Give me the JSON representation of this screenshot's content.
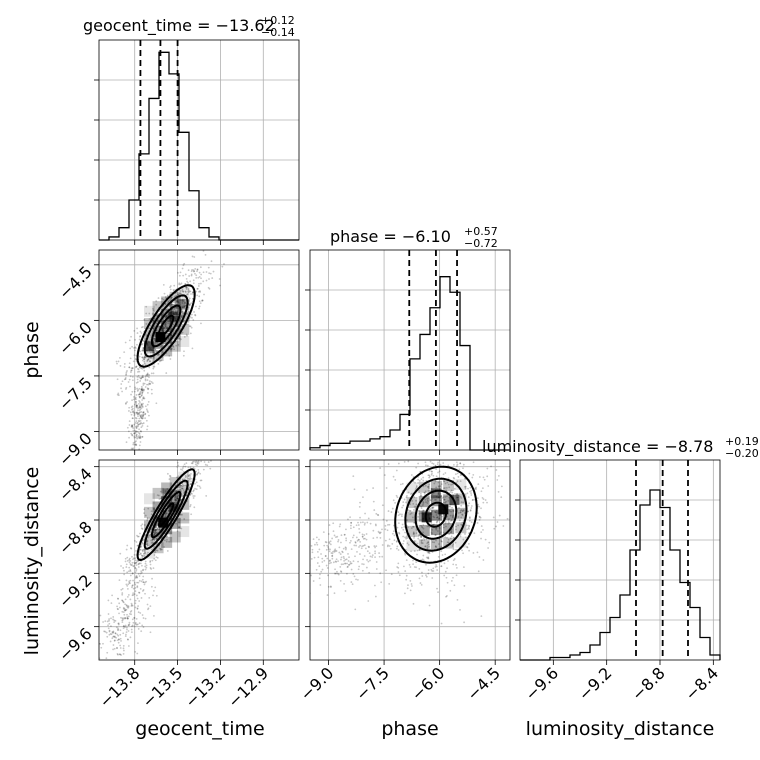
{
  "chart_data": {
    "type": "corner",
    "parameters": [
      {
        "name": "geocent_time",
        "axis_label": "geocent_time",
        "title_main": "geocent_time = −13.62",
        "title_plus": "+0.12",
        "title_minus": "−0.14",
        "range": [
          -14.05,
          -12.65
        ],
        "ticks": [
          -13.8,
          -13.5,
          -13.2,
          -12.9
        ],
        "tick_labels": [
          "−13.8",
          "−13.5",
          "−13.2",
          "−12.9"
        ],
        "quantiles": [
          -13.76,
          -13.62,
          -13.5
        ],
        "hist_bins": [
          -14.05,
          -13.98,
          -13.91,
          -13.84,
          -13.77,
          -13.7,
          -13.63,
          -13.56,
          -13.49,
          -13.42,
          -13.35,
          -13.28,
          -13.21,
          -13.14,
          -13.07,
          -13.0,
          -12.93,
          -12.86,
          -12.79,
          -12.72,
          -12.65
        ],
        "hist_counts": [
          0,
          1,
          4,
          13,
          28,
          46,
          61,
          54,
          35,
          16,
          4,
          1,
          0,
          0,
          0,
          0,
          0,
          0,
          0,
          0
        ],
        "hist_max": 65
      },
      {
        "name": "phase",
        "axis_label": "phase",
        "title_main": "phase = −6.10",
        "title_plus": "+0.57",
        "title_minus": "−0.72",
        "range": [
          -9.5,
          -4.1
        ],
        "ticks": [
          -9.0,
          -7.5,
          -6.0,
          -4.5
        ],
        "tick_labels": [
          "−9.0",
          "−7.5",
          "−6.0",
          "−4.5"
        ],
        "quantiles": [
          -6.82,
          -6.1,
          -5.53
        ],
        "hist_bins": [
          -9.5,
          -9.23,
          -8.96,
          -8.69,
          -8.42,
          -8.15,
          -7.88,
          -7.61,
          -7.34,
          -7.07,
          -6.8,
          -6.53,
          -6.26,
          -5.99,
          -5.72,
          -5.45,
          -5.18,
          -4.91,
          -4.64,
          -4.37,
          -4.1
        ],
        "hist_counts": [
          1,
          2,
          3,
          3,
          4,
          4,
          5,
          6,
          9,
          16,
          41,
          52,
          64,
          78,
          71,
          47,
          0,
          0,
          0,
          0
        ],
        "hist_max": 90
      },
      {
        "name": "luminosity_distance",
        "axis_label": "luminosity_distance",
        "title_main": "luminosity_distance = −8.78",
        "title_plus": "+0.19",
        "title_minus": "−0.20",
        "range": [
          -9.85,
          -8.35
        ],
        "ticks": [
          -9.6,
          -9.2,
          -8.8,
          -8.4
        ],
        "tick_labels": [
          "−9.6",
          "−9.2",
          "−8.8",
          "−8.4"
        ],
        "quantiles": [
          -8.98,
          -8.78,
          -8.59
        ],
        "hist_bins": [
          -9.85,
          -9.775,
          -9.7,
          -9.625,
          -9.55,
          -9.475,
          -9.4,
          -9.325,
          -9.25,
          -9.175,
          -9.1,
          -9.025,
          -8.95,
          -8.875,
          -8.8,
          -8.725,
          -8.65,
          -8.575,
          -8.5,
          -8.425,
          -8.35
        ],
        "hist_counts": [
          0,
          0,
          0,
          1,
          1,
          2,
          3,
          6,
          11,
          17,
          26,
          44,
          62,
          68,
          61,
          44,
          31,
          21,
          9,
          2
        ],
        "hist_max": 80
      }
    ],
    "density": [
      {
        "x_param": 0,
        "y_param": 1,
        "center": [
          -13.58,
          -6.15
        ],
        "sigma": [
          0.1,
          0.55
        ],
        "rho": 0.78,
        "tail": {
          "start": [
            -13.72,
            -7.4
          ],
          "end": [
            -13.8,
            -9.2
          ],
          "spread": [
            0.03,
            0.35
          ]
        },
        "blocks": [
          [
            -13.53,
            -5.9,
            0.55
          ],
          [
            -13.62,
            -6.45,
            1.0
          ],
          [
            -13.7,
            -6.7,
            0.6
          ],
          [
            -13.48,
            -5.55,
            0.35
          ]
        ]
      },
      {
        "x_param": 0,
        "y_param": 2,
        "center": [
          -13.58,
          -8.76
        ],
        "sigma": [
          0.1,
          0.17
        ],
        "rho": 0.9,
        "tail": {
          "start": [
            -13.75,
            -9.2
          ],
          "end": [
            -13.95,
            -9.75
          ],
          "spread": [
            0.06,
            0.1
          ]
        },
        "blocks": [
          [
            -13.6,
            -8.82,
            0.95
          ],
          [
            -13.53,
            -8.7,
            0.6
          ],
          [
            -13.57,
            -8.6,
            0.4
          ]
        ]
      },
      {
        "x_param": 1,
        "y_param": 2,
        "center": [
          -6.1,
          -8.76
        ],
        "sigma": [
          0.55,
          0.18
        ],
        "rho": 0.15,
        "tail": {
          "start": [
            -7.5,
            -8.95
          ],
          "end": [
            -9.4,
            -9.1
          ],
          "spread": [
            0.35,
            0.12
          ]
        },
        "blocks": [
          [
            -5.9,
            -8.72,
            0.95
          ],
          [
            -6.35,
            -8.78,
            0.75
          ],
          [
            -5.6,
            -8.65,
            0.5
          ],
          [
            -6.1,
            -8.6,
            0.45
          ]
        ]
      }
    ],
    "contour_levels_sigma": [
      0.5,
      1.0,
      1.5,
      2.0
    ]
  }
}
